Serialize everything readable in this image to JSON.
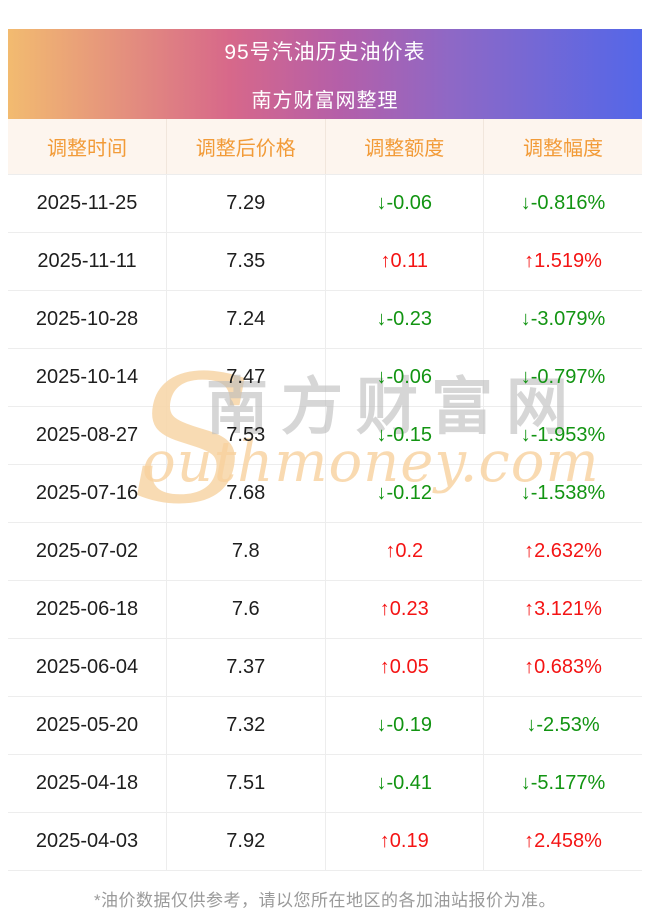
{
  "banner": {
    "title": "95号汽油历史油价表",
    "subtitle": "南方财富网整理"
  },
  "table": {
    "columns": [
      "调整时间",
      "调整后价格",
      "调整额度",
      "调整幅度"
    ],
    "rows": [
      {
        "date": "2025-11-25",
        "price": "7.29",
        "change": "↓-0.06",
        "pct": "↓-0.816%",
        "dir": "down"
      },
      {
        "date": "2025-11-11",
        "price": "7.35",
        "change": "↑0.11",
        "pct": "↑1.519%",
        "dir": "up"
      },
      {
        "date": "2025-10-28",
        "price": "7.24",
        "change": "↓-0.23",
        "pct": "↓-3.079%",
        "dir": "down"
      },
      {
        "date": "2025-10-14",
        "price": "7.47",
        "change": "↓-0.06",
        "pct": "↓-0.797%",
        "dir": "down"
      },
      {
        "date": "2025-08-27",
        "price": "7.53",
        "change": "↓-0.15",
        "pct": "↓-1.953%",
        "dir": "down"
      },
      {
        "date": "2025-07-16",
        "price": "7.68",
        "change": "↓-0.12",
        "pct": "↓-1.538%",
        "dir": "down"
      },
      {
        "date": "2025-07-02",
        "price": "7.8",
        "change": "↑0.2",
        "pct": "↑2.632%",
        "dir": "up"
      },
      {
        "date": "2025-06-18",
        "price": "7.6",
        "change": "↑0.23",
        "pct": "↑3.121%",
        "dir": "up"
      },
      {
        "date": "2025-06-04",
        "price": "7.37",
        "change": "↑0.05",
        "pct": "↑0.683%",
        "dir": "up"
      },
      {
        "date": "2025-05-20",
        "price": "7.32",
        "change": "↓-0.19",
        "pct": "↓-2.53%",
        "dir": "down"
      },
      {
        "date": "2025-04-18",
        "price": "7.51",
        "change": "↓-0.41",
        "pct": "↓-5.177%",
        "dir": "down"
      },
      {
        "date": "2025-04-03",
        "price": "7.92",
        "change": "↑0.19",
        "pct": "↑2.458%",
        "dir": "up"
      }
    ]
  },
  "watermark": {
    "initial": "S",
    "cn": "南方财富网",
    "en": "outhmoney.com"
  },
  "footer": {
    "note": "*油价数据仅供参考，请以您所在地区的各加油站报价为准。"
  },
  "colors": {
    "up_red": "#f41414",
    "down_green": "#129412",
    "header_orange": "#f29b38",
    "header_bg": "#fdf5ee",
    "banner_gradient": [
      "#f2bb70",
      "#d7688a",
      "#8e68c6",
      "#5467e8"
    ]
  }
}
